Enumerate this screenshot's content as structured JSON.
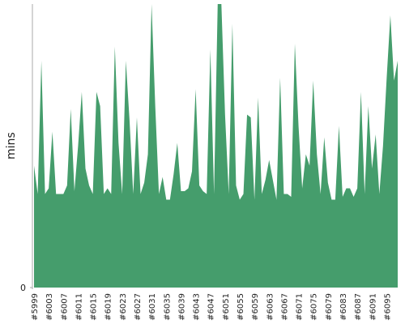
{
  "chart_data": {
    "type": "area",
    "y_label": "mins",
    "color": "#459d6c",
    "categories": [
      "#5999",
      null,
      null,
      null,
      "#6003",
      null,
      null,
      null,
      "#6007",
      null,
      null,
      null,
      "#6011",
      null,
      null,
      null,
      "#6015",
      null,
      null,
      null,
      "#6019",
      null,
      null,
      null,
      "#6023",
      null,
      null,
      null,
      "#6027",
      null,
      null,
      null,
      "#6031",
      null,
      null,
      null,
      "#6035",
      null,
      null,
      null,
      "#6039",
      null,
      null,
      null,
      "#6043",
      null,
      null,
      null,
      "#6047",
      null,
      null,
      null,
      "#6051",
      null,
      null,
      null,
      "#6055",
      null,
      null,
      null,
      "#6059",
      null,
      null,
      null,
      "#6063",
      null,
      null,
      null,
      "#6067",
      null,
      null,
      null,
      "#6071",
      null,
      null,
      null,
      "#6075",
      null,
      null,
      null,
      "#6079",
      null,
      null,
      null,
      "#6083",
      null,
      null,
      null,
      "#6087",
      null,
      null,
      null,
      "#6091",
      null,
      null,
      null,
      "#6095",
      null,
      null,
      null
    ],
    "values": [
      43,
      33,
      80,
      33,
      35,
      55,
      33,
      33,
      33,
      36,
      63,
      34,
      50,
      69,
      42,
      36,
      33,
      69,
      64,
      33,
      35,
      33,
      85,
      51,
      33,
      80,
      59,
      33,
      60,
      33,
      37,
      47,
      100,
      64,
      33,
      39,
      31,
      31,
      40,
      51,
      34,
      34,
      35,
      41,
      70,
      36,
      34,
      33,
      84,
      33,
      100,
      100,
      61,
      33,
      93,
      36,
      31,
      33,
      61,
      60,
      31,
      67,
      33,
      38,
      45,
      38,
      31,
      74,
      33,
      33,
      32,
      86,
      57,
      35,
      47,
      43,
      73,
      47,
      33,
      53,
      37,
      31,
      31,
      57,
      32,
      35,
      35,
      32,
      35,
      69,
      33,
      64,
      42,
      54,
      33,
      50,
      74,
      96,
      73,
      80
    ],
    "ylim": [
      0,
      100
    ],
    "yticks": [
      0
    ],
    "grid": false
  }
}
